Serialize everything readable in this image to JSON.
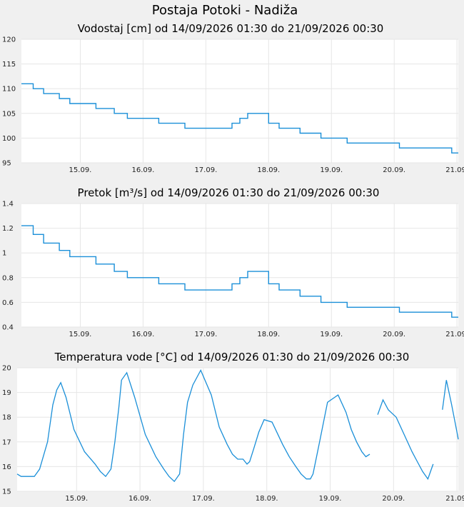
{
  "page": {
    "title": "Postaja Potoki - Nadiža"
  },
  "chart_data": [
    {
      "type": "line",
      "title": "Vodostaj [cm] od 14/09/2026 01:30 do 21/09/2026 00:30",
      "xlabel": "",
      "ylabel": "",
      "x_range": [
        "14/09/2026 01:30",
        "21/09/2026 00:30"
      ],
      "x_ticks": [
        "15.09.",
        "16.09.",
        "17.09.",
        "18.09.",
        "19.09.",
        "20.09.",
        "21.09."
      ],
      "y_ticks": [
        "95",
        "100",
        "105",
        "110",
        "115",
        "120"
      ],
      "ylim": [
        95,
        120
      ],
      "grid": true,
      "series": [
        {
          "color": "#1a8fd8",
          "x": [
            "14/09/2026 01:30",
            "14/09/2026 06:00",
            "14/09/2026 06:00",
            "14/09/2026 10:00",
            "14/09/2026 10:00",
            "14/09/2026 16:00",
            "14/09/2026 16:00",
            "14/09/2026 20:00",
            "14/09/2026 20:00",
            "15/09/2026 06:00",
            "15/09/2026 06:00",
            "15/09/2026 13:00",
            "15/09/2026 13:00",
            "15/09/2026 18:00",
            "15/09/2026 18:00",
            "16/09/2026 06:00",
            "16/09/2026 06:00",
            "16/09/2026 16:00",
            "16/09/2026 16:00",
            "17/09/2026 10:00",
            "17/09/2026 10:00",
            "17/09/2026 13:00",
            "17/09/2026 13:00",
            "17/09/2026 16:00",
            "17/09/2026 16:00",
            "18/09/2026 00:00",
            "18/09/2026 00:00",
            "18/09/2026 04:00",
            "18/09/2026 04:00",
            "18/09/2026 12:00",
            "18/09/2026 12:00",
            "18/09/2026 20:00",
            "18/09/2026 20:00",
            "19/09/2026 06:00",
            "19/09/2026 06:00",
            "19/09/2026 12:00",
            "19/09/2026 12:00",
            "20/09/2026 02:00",
            "20/09/2026 02:00",
            "20/09/2026 22:00",
            "20/09/2026 22:00",
            "21/09/2026 00:30"
          ],
          "values": [
            111,
            111,
            110,
            110,
            109,
            109,
            108,
            108,
            107,
            107,
            106,
            106,
            105,
            105,
            104,
            104,
            103,
            103,
            102,
            102,
            103,
            103,
            104,
            104,
            105,
            105,
            103,
            103,
            102,
            102,
            101,
            101,
            100,
            100,
            99,
            99,
            99,
            99,
            98,
            98,
            97,
            97
          ]
        }
      ]
    },
    {
      "type": "line",
      "title": "Pretok [m³/s] od 14/09/2026 01:30 do 21/09/2026 00:30",
      "xlabel": "",
      "ylabel": "",
      "x_range": [
        "14/09/2026 01:30",
        "21/09/2026 00:30"
      ],
      "x_ticks": [
        "15.09.",
        "16.09.",
        "17.09.",
        "18.09.",
        "19.09.",
        "20.09.",
        "21.09."
      ],
      "y_ticks": [
        "0.4",
        "0.6",
        "0.8",
        "1",
        "1.2",
        "1.4"
      ],
      "ylim": [
        0.4,
        1.4
      ],
      "grid": true,
      "series": [
        {
          "color": "#1a8fd8",
          "x": [
            "14/09/2026 01:30",
            "14/09/2026 06:00",
            "14/09/2026 06:00",
            "14/09/2026 10:00",
            "14/09/2026 10:00",
            "14/09/2026 16:00",
            "14/09/2026 16:00",
            "14/09/2026 20:00",
            "14/09/2026 20:00",
            "15/09/2026 06:00",
            "15/09/2026 06:00",
            "15/09/2026 13:00",
            "15/09/2026 13:00",
            "15/09/2026 18:00",
            "15/09/2026 18:00",
            "16/09/2026 06:00",
            "16/09/2026 06:00",
            "16/09/2026 16:00",
            "16/09/2026 16:00",
            "17/09/2026 10:00",
            "17/09/2026 10:00",
            "17/09/2026 13:00",
            "17/09/2026 13:00",
            "17/09/2026 16:00",
            "17/09/2026 16:00",
            "18/09/2026 00:00",
            "18/09/2026 00:00",
            "18/09/2026 04:00",
            "18/09/2026 04:00",
            "18/09/2026 12:00",
            "18/09/2026 12:00",
            "18/09/2026 20:00",
            "18/09/2026 20:00",
            "19/09/2026 06:00",
            "19/09/2026 06:00",
            "19/09/2026 12:00",
            "19/09/2026 12:00",
            "20/09/2026 02:00",
            "20/09/2026 02:00",
            "20/09/2026 22:00",
            "20/09/2026 22:00",
            "21/09/2026 00:30"
          ],
          "values": [
            1.22,
            1.22,
            1.15,
            1.15,
            1.08,
            1.08,
            1.02,
            1.02,
            0.97,
            0.97,
            0.91,
            0.91,
            0.85,
            0.85,
            0.8,
            0.8,
            0.75,
            0.75,
            0.7,
            0.7,
            0.75,
            0.75,
            0.8,
            0.8,
            0.85,
            0.85,
            0.75,
            0.75,
            0.7,
            0.7,
            0.65,
            0.65,
            0.6,
            0.6,
            0.56,
            0.56,
            0.56,
            0.56,
            0.52,
            0.52,
            0.48,
            0.48
          ]
        }
      ]
    },
    {
      "type": "line",
      "title": "Temperatura vode [°C] od 14/09/2026 01:30 do 21/09/2026 00:30",
      "xlabel": "",
      "ylabel": "",
      "x_range": [
        "14/09/2026 01:30",
        "21/09/2026 00:30"
      ],
      "x_ticks": [
        "15.09.",
        "16.09.",
        "17.09.",
        "18.09.",
        "19.09.",
        "20.09.",
        "21.09."
      ],
      "y_ticks": [
        "15",
        "16",
        "17",
        "18",
        "19",
        "20"
      ],
      "ylim": [
        15,
        20
      ],
      "grid": true,
      "series": [
        {
          "color": "#1a8fd8",
          "gaps": [
            [
              "19/09/2026 15:00",
              "19/09/2026 18:00"
            ],
            [
              "20/09/2026 15:00",
              "20/09/2026 18:30"
            ]
          ],
          "x": [
            "14/09/2026 01:30",
            "14/09/2026 03:00",
            "14/09/2026 08:00",
            "14/09/2026 10:00",
            "14/09/2026 13:00",
            "14/09/2026 15:00",
            "14/09/2026 16:30",
            "14/09/2026 18:00",
            "14/09/2026 20:00",
            "14/09/2026 23:00",
            "15/09/2026 03:00",
            "15/09/2026 07:00",
            "15/09/2026 09:00",
            "15/09/2026 11:00",
            "15/09/2026 13:00",
            "15/09/2026 14:30",
            "15/09/2026 16:00",
            "15/09/2026 17:00",
            "15/09/2026 19:00",
            "15/09/2026 22:00",
            "16/09/2026 02:00",
            "16/09/2026 06:00",
            "16/09/2026 09:00",
            "16/09/2026 11:00",
            "16/09/2026 13:00",
            "16/09/2026 15:00",
            "16/09/2026 16:30",
            "16/09/2026 18:00",
            "16/09/2026 20:00",
            "16/09/2026 23:00",
            "17/09/2026 03:00",
            "17/09/2026 06:00",
            "17/09/2026 09:00",
            "17/09/2026 11:00",
            "17/09/2026 13:00",
            "17/09/2026 15:00",
            "17/09/2026 16:30",
            "17/09/2026 17:30",
            "17/09/2026 19:00",
            "17/09/2026 21:00",
            "17/09/2026 23:00",
            "18/09/2026 02:00",
            "18/09/2026 06:00",
            "18/09/2026 08:30",
            "18/09/2026 11:00",
            "18/09/2026 13:00",
            "18/09/2026 15:00",
            "18/09/2026 16:30",
            "18/09/2026 17:30",
            "18/09/2026 20:00",
            "18/09/2026 23:00",
            "19/09/2026 03:00",
            "19/09/2026 06:00",
            "19/09/2026 08:00",
            "19/09/2026 10:00",
            "19/09/2026 12:00",
            "19/09/2026 13:30",
            "19/09/2026 15:00",
            "19/09/2026 18:00",
            "19/09/2026 20:00",
            "19/09/2026 22:00",
            "20/09/2026 01:00",
            "20/09/2026 04:00",
            "20/09/2026 07:00",
            "20/09/2026 09:00",
            "20/09/2026 11:00",
            "20/09/2026 13:00",
            "20/09/2026 15:00",
            "20/09/2026 18:30",
            "20/09/2026 20:00",
            "20/09/2026 22:00",
            "21/09/2026 00:00",
            "21/09/2026 00:30"
          ],
          "values": [
            15.7,
            15.6,
            15.6,
            15.9,
            17.0,
            18.5,
            19.1,
            19.4,
            18.8,
            17.5,
            16.6,
            16.1,
            15.8,
            15.6,
            15.9,
            17.0,
            18.4,
            19.5,
            19.8,
            18.8,
            17.3,
            16.4,
            15.9,
            15.6,
            15.4,
            15.7,
            17.3,
            18.6,
            19.3,
            19.9,
            18.9,
            17.6,
            16.9,
            16.5,
            16.3,
            16.3,
            16.1,
            16.2,
            16.7,
            17.4,
            17.9,
            17.8,
            16.9,
            16.4,
            16.0,
            15.7,
            15.5,
            15.5,
            15.7,
            17.0,
            18.6,
            18.9,
            18.2,
            17.5,
            17.0,
            16.6,
            16.4,
            16.5,
            18.1,
            18.7,
            18.3,
            18.0,
            17.3,
            16.6,
            16.2,
            15.8,
            15.5,
            16.1,
            18.3,
            19.5,
            18.5,
            17.4,
            17.1
          ]
        }
      ]
    }
  ]
}
